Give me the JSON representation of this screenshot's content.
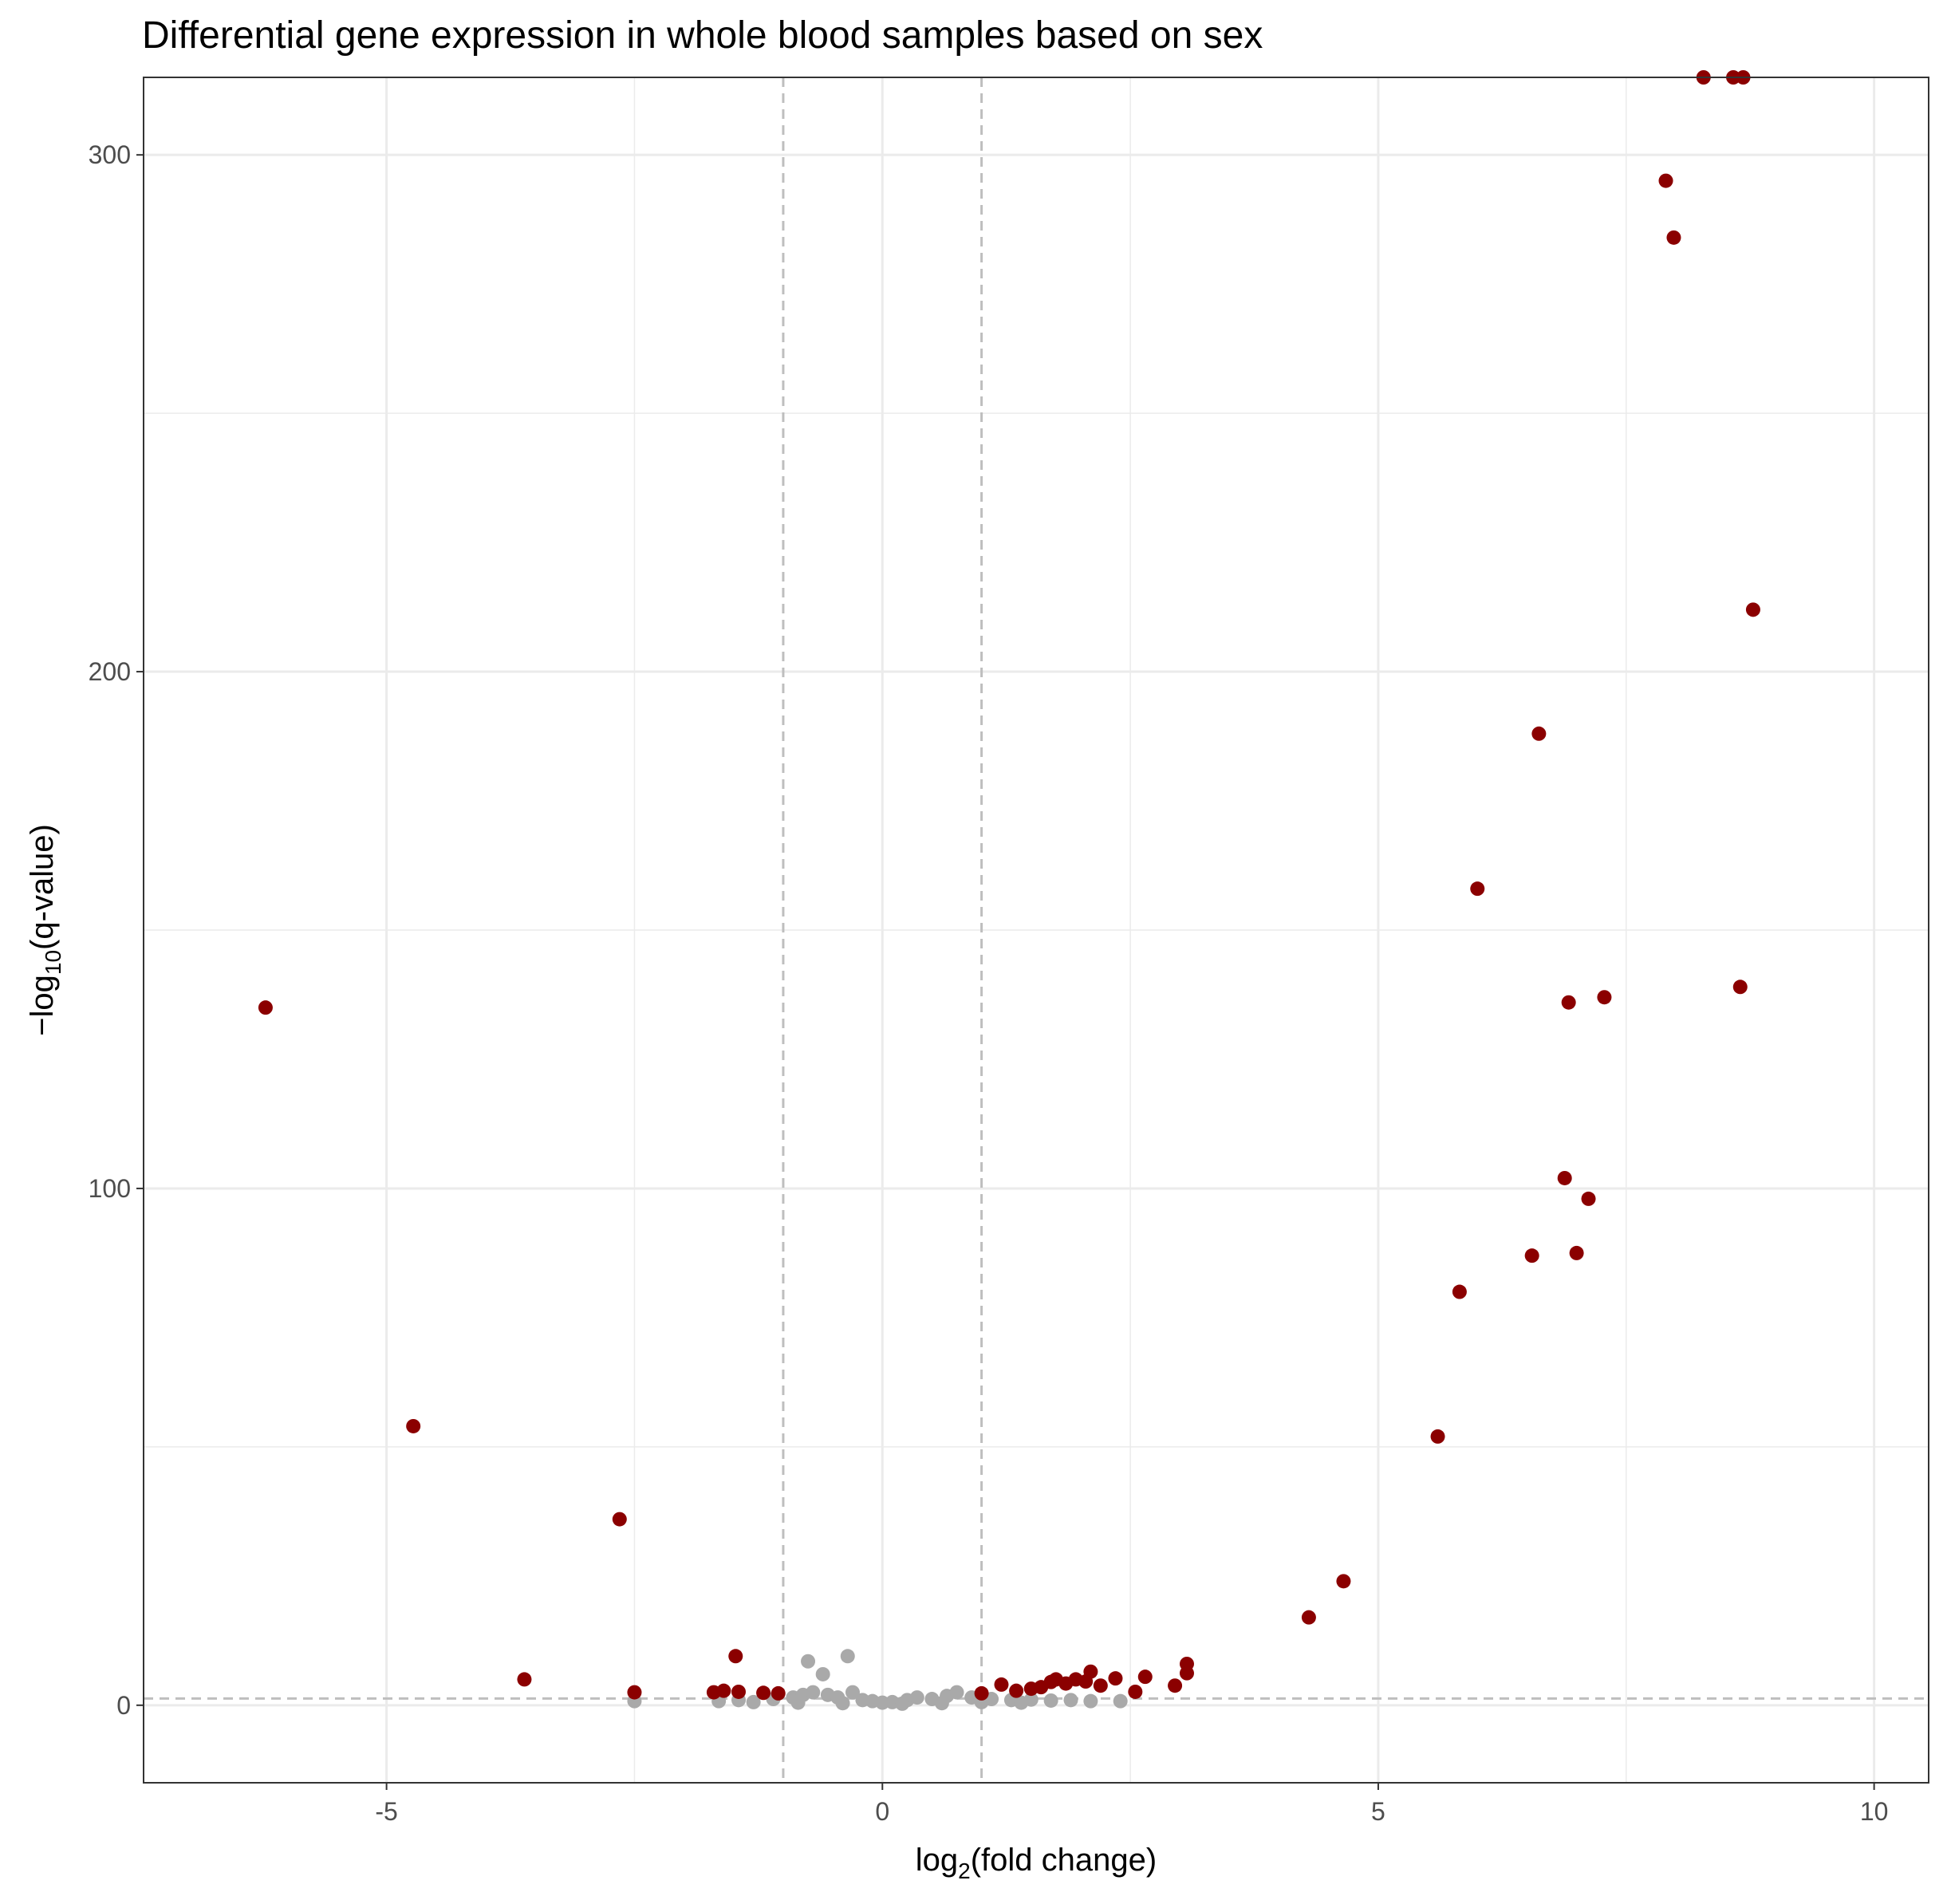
{
  "chart_data": {
    "type": "scatter",
    "title": "Differential gene expression in whole blood samples based on sex",
    "xlabel": {
      "prefix": "log",
      "sub": "2",
      "suffix": "(fold change)"
    },
    "ylabel": {
      "prefix": "−log",
      "sub": "10",
      "suffix": "(q-value)"
    },
    "xlim": [
      -7.45,
      10.55
    ],
    "ylim": [
      -15,
      315
    ],
    "x_ticks": [
      {
        "value": -5,
        "label": "-5"
      },
      {
        "value": 0,
        "label": "0"
      },
      {
        "value": 5,
        "label": "5"
      },
      {
        "value": 10,
        "label": "10"
      }
    ],
    "y_ticks": [
      {
        "value": 0,
        "label": "0"
      },
      {
        "value": 100,
        "label": "100"
      },
      {
        "value": 200,
        "label": "200"
      },
      {
        "value": 300,
        "label": "300"
      }
    ],
    "grid": true,
    "thresholds": {
      "log2fc": [
        -1,
        1
      ],
      "neg_log10_q": 1.3
    },
    "colors": {
      "significant": "#8b0000",
      "not_significant": "#a9a9a9",
      "threshold_line": "#bebebe",
      "grid": "#ebebeb",
      "panel_border": "#333333"
    },
    "series": [
      {
        "color_key": "significant",
        "points": [
          [
            -6.22,
            135
          ],
          [
            -4.73,
            54
          ],
          [
            -3.61,
            5
          ],
          [
            -2.65,
            36
          ],
          [
            -2.5,
            2.5
          ],
          [
            -1.48,
            9.5
          ],
          [
            -1.7,
            2.5
          ],
          [
            -1.6,
            2.8
          ],
          [
            -1.45,
            2.6
          ],
          [
            -1.2,
            2.4
          ],
          [
            -1.05,
            2.3
          ],
          [
            1.0,
            2.3
          ],
          [
            1.2,
            4
          ],
          [
            1.35,
            2.8
          ],
          [
            1.5,
            3.2
          ],
          [
            1.6,
            3.5
          ],
          [
            1.7,
            4.5
          ],
          [
            1.75,
            5
          ],
          [
            1.85,
            4.2
          ],
          [
            1.95,
            5
          ],
          [
            2.05,
            4.6
          ],
          [
            2.1,
            6.5
          ],
          [
            2.2,
            3.8
          ],
          [
            2.35,
            5.2
          ],
          [
            2.55,
            2.6
          ],
          [
            2.65,
            5.5
          ],
          [
            2.95,
            3.8
          ],
          [
            3.07,
            8
          ],
          [
            3.07,
            6.2
          ],
          [
            4.3,
            17
          ],
          [
            4.65,
            24
          ],
          [
            5.6,
            52
          ],
          [
            5.82,
            80
          ],
          [
            6.0,
            158
          ],
          [
            6.55,
            87
          ],
          [
            6.62,
            188
          ],
          [
            6.88,
            102
          ],
          [
            6.92,
            136
          ],
          [
            7.0,
            87.5
          ],
          [
            7.12,
            98
          ],
          [
            7.28,
            137
          ],
          [
            7.9,
            295
          ],
          [
            7.98,
            284
          ],
          [
            8.28,
            315
          ],
          [
            8.58,
            315
          ],
          [
            8.68,
            315
          ],
          [
            8.65,
            139
          ],
          [
            8.78,
            212
          ]
        ]
      },
      {
        "color_key": "not_significant",
        "points": [
          [
            -2.5,
            0.8
          ],
          [
            -1.65,
            0.8
          ],
          [
            -1.45,
            1
          ],
          [
            -1.3,
            0.6
          ],
          [
            -1.1,
            1.2
          ],
          [
            -0.9,
            1.5
          ],
          [
            -0.8,
            2
          ],
          [
            -0.75,
            8.5
          ],
          [
            -0.7,
            2.5
          ],
          [
            -0.6,
            6
          ],
          [
            -0.55,
            2
          ],
          [
            -0.45,
            1.5
          ],
          [
            -0.35,
            9.5
          ],
          [
            -0.3,
            2.5
          ],
          [
            -0.2,
            1
          ],
          [
            -0.1,
            0.8
          ],
          [
            0.0,
            0.5
          ],
          [
            0.1,
            0.6
          ],
          [
            0.25,
            1
          ],
          [
            0.35,
            1.5
          ],
          [
            0.5,
            1.2
          ],
          [
            0.65,
            1.8
          ],
          [
            0.75,
            2.5
          ],
          [
            0.9,
            1.5
          ],
          [
            1.1,
            1.2
          ],
          [
            1.3,
            1
          ],
          [
            1.5,
            1.1
          ],
          [
            1.7,
            0.9
          ],
          [
            1.9,
            1
          ],
          [
            2.1,
            0.8
          ],
          [
            2.4,
            0.8
          ],
          [
            -0.85,
            0.5
          ],
          [
            -0.4,
            0.4
          ],
          [
            0.2,
            0.3
          ],
          [
            0.6,
            0.4
          ],
          [
            1.0,
            0.6
          ],
          [
            1.4,
            0.5
          ]
        ]
      }
    ]
  }
}
